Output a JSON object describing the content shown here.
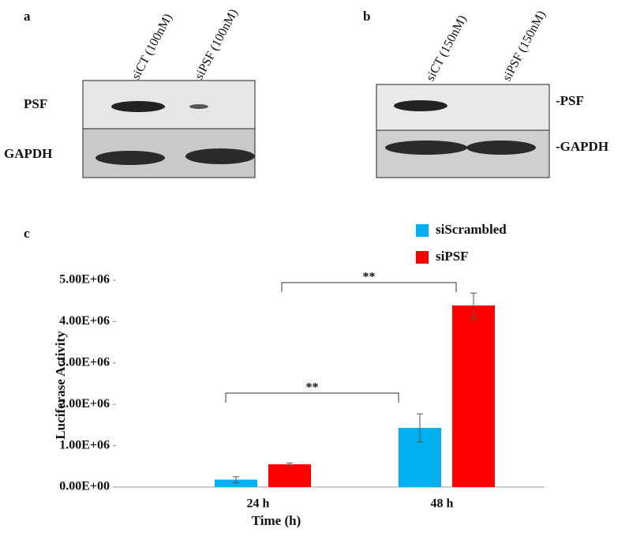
{
  "panel_a": {
    "label": "a",
    "lanes": [
      "siCT (100nM)",
      "siPSF (100nM)"
    ],
    "rows": [
      "PSF",
      "GAPDH"
    ]
  },
  "panel_b": {
    "label": "b",
    "lanes": [
      "siCT (150nM)",
      "siPSF (150nM)"
    ],
    "rows": [
      "-PSF",
      "-GAPDH"
    ]
  },
  "panel_c": {
    "label": "c"
  },
  "chart_data": {
    "type": "bar",
    "x_label": "Time (h)",
    "y_label": "Luciferase Activity",
    "categories": [
      "24 h",
      "48 h"
    ],
    "series": [
      {
        "name": "siScrambled",
        "color": "#00b0f0",
        "values": [
          180000,
          1430000
        ],
        "errors": [
          70000,
          340000
        ]
      },
      {
        "name": "siPSF",
        "color": "#ff0000",
        "values": [
          550000,
          4390000
        ],
        "errors": [
          30000,
          300000
        ]
      }
    ],
    "ylim": [
      0,
      5000000
    ],
    "yticks": [
      {
        "value": 0,
        "label": "0.00E+00"
      },
      {
        "value": 1000000,
        "label": "1.00E+06"
      },
      {
        "value": 2000000,
        "label": "2.00E+06"
      },
      {
        "value": 3000000,
        "label": "3.00E+06"
      },
      {
        "value": 4000000,
        "label": "4.00E+06"
      },
      {
        "value": 5000000,
        "label": "5.00E+06"
      }
    ],
    "annotations": [
      {
        "text": "**"
      },
      {
        "text": "**"
      }
    ]
  }
}
